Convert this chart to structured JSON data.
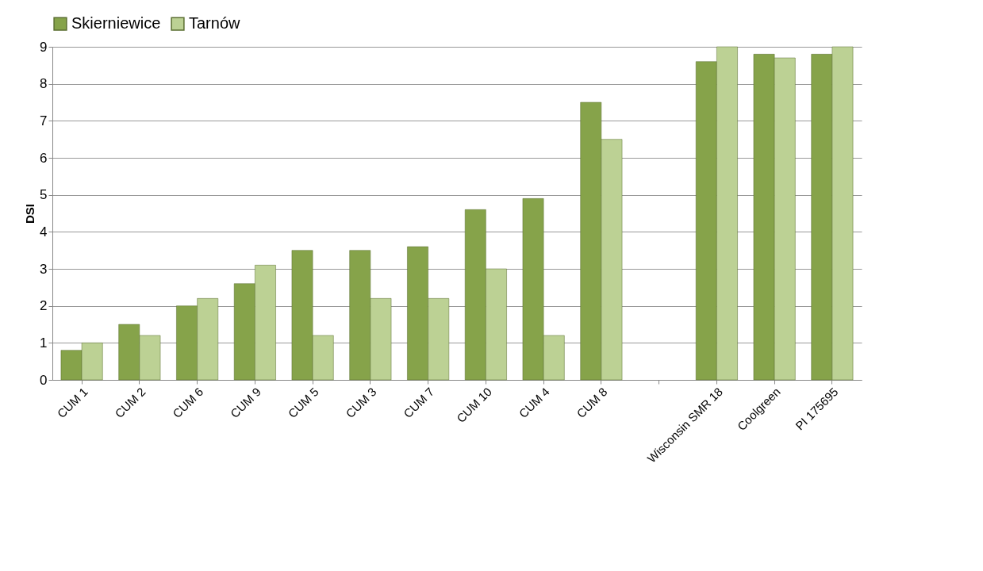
{
  "chart_data": {
    "type": "bar",
    "ylabel": "DSI",
    "categories": [
      "CUM 1",
      "CUM 2",
      "CUM 6",
      "CUM 9",
      "CUM 5",
      "CUM 3",
      "CUM 7",
      "CUM 10",
      "CUM 4",
      "CUM 8",
      null,
      "Wisconsin SMR 18",
      "Coolgreen",
      "PI 175695"
    ],
    "series": [
      {
        "name": "Skierniewice",
        "color": "#86a34a",
        "values": [
          0.8,
          1.5,
          2.0,
          2.6,
          3.5,
          3.5,
          3.6,
          4.6,
          4.9,
          7.5,
          null,
          8.6,
          8.8,
          8.8
        ]
      },
      {
        "name": "Tarnów",
        "color": "#bcd194",
        "values": [
          1.0,
          1.2,
          2.2,
          3.1,
          1.2,
          2.2,
          2.2,
          3.0,
          1.2,
          6.5,
          null,
          9.0,
          8.7,
          9.0
        ]
      }
    ],
    "ylim": [
      0,
      9
    ],
    "yticks": [
      0,
      1,
      2,
      3,
      4,
      5,
      6,
      7,
      8,
      9
    ],
    "grid": "y",
    "legend": "top"
  }
}
